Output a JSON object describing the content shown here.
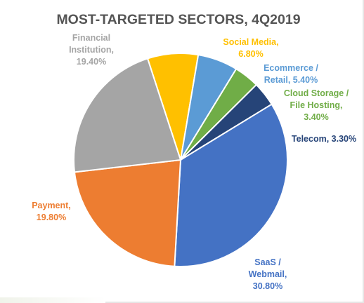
{
  "chart_data": {
    "type": "pie",
    "title": "MOST-TARGETED SECTORS, 4Q2019",
    "slices": [
      {
        "name": "Social Media",
        "label_lines": [
          "Social Media,",
          "6.80%"
        ],
        "value": 6.8,
        "color": "#FFC000"
      },
      {
        "name": "Ecommerce / Retail",
        "label_lines": [
          "Ecommerce /",
          "Retail, 5.40%"
        ],
        "value": 5.4,
        "color": "#5B9BD5"
      },
      {
        "name": "Cloud Storage / File Hosting",
        "label_lines": [
          "Cloud Storage /",
          "File Hosting,",
          "3.40%"
        ],
        "value": 3.4,
        "color": "#70AD47"
      },
      {
        "name": "Telecom",
        "label_lines": [
          "Telecom, 3.30%"
        ],
        "value": 3.3,
        "color": "#264478"
      },
      {
        "name": "SaaS / Webmail",
        "label_lines": [
          "SaaS /",
          "Webmail,",
          "30.80%"
        ],
        "value": 30.8,
        "color": "#4472C4"
      },
      {
        "name": "Payment",
        "label_lines": [
          "Payment,",
          "19.80%"
        ],
        "value": 19.8,
        "color": "#ED7D31"
      },
      {
        "name": "Financial Institution",
        "label_lines": [
          "Financial",
          "Institution,",
          "19.40%"
        ],
        "value": 19.4,
        "color": "#A5A5A5"
      }
    ],
    "label_colors": {
      "Social Media": "#FFC000",
      "Ecommerce / Retail": "#5B9BD5",
      "Cloud Storage / File Hosting": "#70AD47",
      "Telecom": "#264478",
      "SaaS / Webmail": "#4472C4",
      "Payment": "#ED7D31",
      "Financial Institution": "#A5A5A5"
    }
  }
}
